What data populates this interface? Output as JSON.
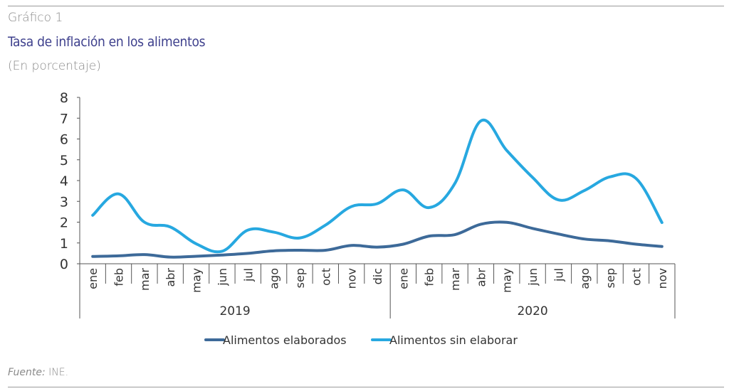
{
  "header": {
    "figure_label": "Gráfico 1",
    "title": "Tasa de inflación en los alimentos",
    "subtitle": "(En porcentaje)"
  },
  "footer": {
    "source_prefix": "Fuente:",
    "source_text": " INE."
  },
  "colors": {
    "elaborados": "#3d6a99",
    "sin_elaborar": "#27a8e0",
    "axis": "#555555",
    "text_accent": "#3d3f8c"
  },
  "chart_data": {
    "type": "line",
    "title": "Tasa de inflación en los alimentos",
    "ylabel": "",
    "xlabel": "",
    "ylim": [
      0,
      8
    ],
    "yticks": [
      0,
      1,
      2,
      3,
      4,
      5,
      6,
      7,
      8
    ],
    "grid": false,
    "legend_position": "bottom",
    "categories": [
      "ene",
      "feb",
      "mar",
      "abr",
      "may",
      "jun",
      "jul",
      "ago",
      "sep",
      "oct",
      "nov",
      "dic",
      "ene",
      "feb",
      "mar",
      "abr",
      "may",
      "jun",
      "jul",
      "ago",
      "sep",
      "oct",
      "nov"
    ],
    "year_groups": [
      {
        "label": "2019",
        "count": 12
      },
      {
        "label": "2020",
        "count": 11
      }
    ],
    "series": [
      {
        "name": "Alimentos elaborados",
        "color": "#3d6a99",
        "values": [
          0.35,
          0.38,
          0.44,
          0.32,
          0.36,
          0.42,
          0.5,
          0.62,
          0.65,
          0.65,
          0.88,
          0.8,
          0.94,
          1.33,
          1.4,
          1.9,
          1.99,
          1.7,
          1.43,
          1.19,
          1.1,
          0.94,
          0.83
        ]
      },
      {
        "name": "Alimentos sin elaborar",
        "color": "#27a8e0",
        "values": [
          2.33,
          3.36,
          2.0,
          1.77,
          0.96,
          0.6,
          1.62,
          1.52,
          1.24,
          1.86,
          2.75,
          2.89,
          3.55,
          2.7,
          3.87,
          6.87,
          5.45,
          4.15,
          3.07,
          3.52,
          4.18,
          4.1,
          1.98
        ]
      }
    ]
  }
}
